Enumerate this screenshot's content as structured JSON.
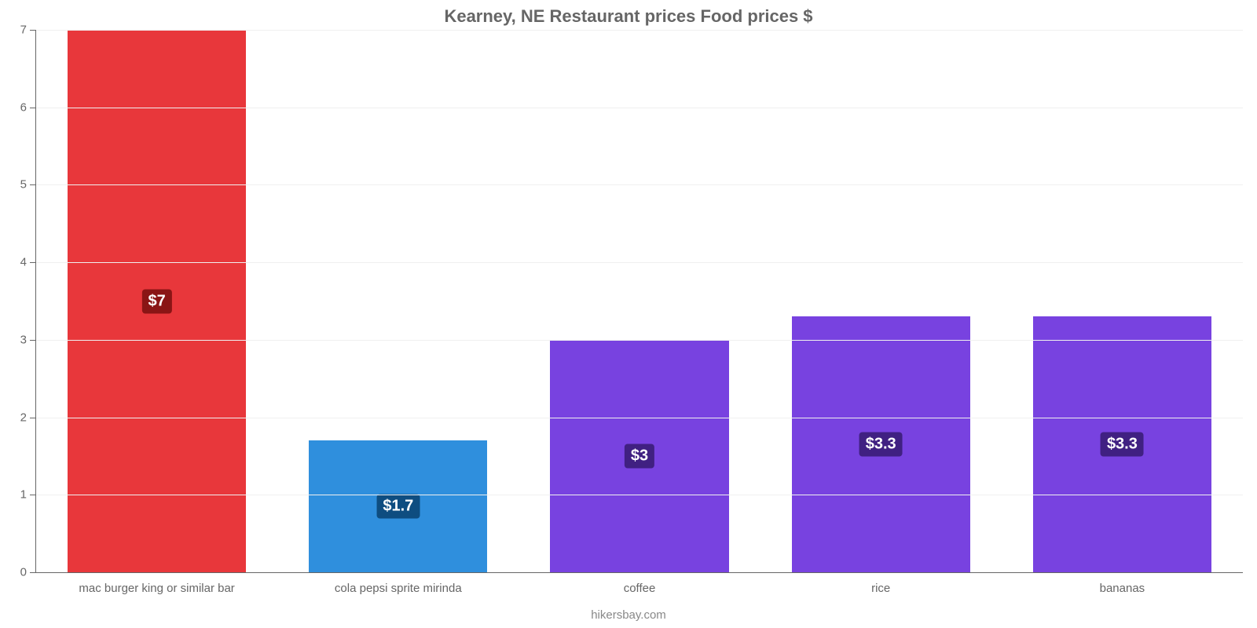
{
  "chart": {
    "type": "bar",
    "title": "Kearney, NE Restaurant prices Food prices $",
    "title_fontsize": 22,
    "title_color": "#666666",
    "source": "hikersbay.com",
    "background_color": "#ffffff",
    "grid_color": "#f0f0f0",
    "axis_color": "#666666",
    "label_color": "#666666",
    "label_fontsize": 15,
    "ylim": [
      0,
      7
    ],
    "ytick_step": 1,
    "y_ticks": [
      0,
      1,
      2,
      3,
      4,
      5,
      6,
      7
    ],
    "bar_width_pct": 74,
    "value_label_fontsize": 20,
    "categories": [
      "mac burger king or similar bar",
      "cola pepsi sprite mirinda",
      "coffee",
      "rice",
      "bananas"
    ],
    "values": [
      7,
      1.7,
      3,
      3.3,
      3.3
    ],
    "value_labels": [
      "$7",
      "$1.7",
      "$3",
      "$3.3",
      "$3.3"
    ],
    "bar_colors": [
      "#e8373b",
      "#2f8fdd",
      "#7842e0",
      "#7842e0",
      "#7842e0"
    ],
    "badge_colors": [
      "#8a1515",
      "#0e4d80",
      "#402082",
      "#402082",
      "#402082"
    ]
  }
}
